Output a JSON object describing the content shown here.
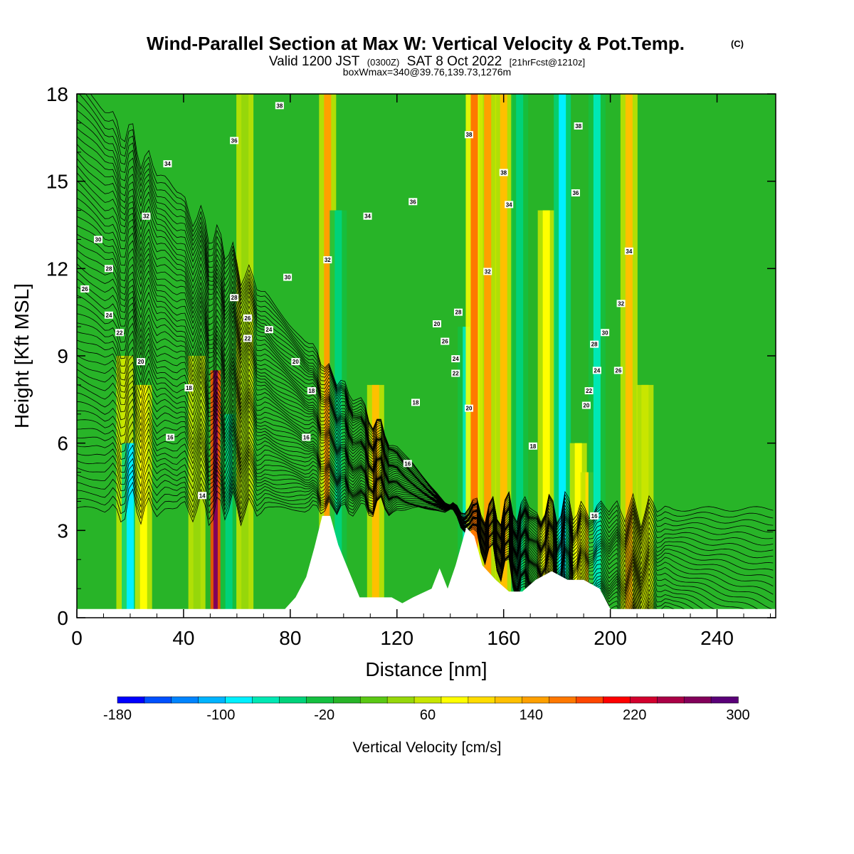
{
  "title": {
    "main": "Wind-Parallel Section at Max W: Vertical Velocity & Pot.Temp.",
    "copyright": "(C)",
    "valid_a": "Valid 1200 JST",
    "valid_b": "(0300Z)",
    "valid_c": "SAT 8 Oct 2022",
    "valid_d": "[21hrFcst@1210z]",
    "line3": "boxWmax=340@39.76,139.73,1276m"
  },
  "colors": {
    "terrain": "#ffffff",
    "contour": "#000000",
    "colormap": [
      "#0000ff",
      "#0050ff",
      "#0084ff",
      "#00b4ff",
      "#00f0ff",
      "#00e8b4",
      "#00d27a",
      "#14c040",
      "#28b428",
      "#5ac814",
      "#96d70a",
      "#c8e600",
      "#ffff00",
      "#ffdc00",
      "#ffc000",
      "#ffa000",
      "#ff7800",
      "#ff4600",
      "#ff0000",
      "#d2002d",
      "#aa0046",
      "#82005a",
      "#5a0078"
    ]
  },
  "chart_data": {
    "type": "heatmap",
    "xlabel": "Distance [nm]",
    "ylabel": "Height [Kft MSL]",
    "xlim": [
      0,
      262
    ],
    "ylim": [
      0,
      18
    ],
    "xticks": [
      0,
      40,
      80,
      120,
      160,
      200,
      240
    ],
    "yticks": [
      0,
      3,
      6,
      9,
      12,
      15,
      18
    ],
    "colorbar": {
      "label": "Vertical Velocity [cm/s]",
      "min": -180,
      "max": 300,
      "step": 20,
      "tick_labels": [
        -180,
        -100,
        -20,
        60,
        140,
        220,
        300
      ]
    },
    "background_w": -20,
    "updraft_bands": [
      {
        "x": 18,
        "w": 40,
        "top": 9
      },
      {
        "x": 20,
        "w": -100,
        "top": 6
      },
      {
        "x": 25,
        "w": 60,
        "top": 8
      },
      {
        "x": 45,
        "w": 30,
        "top": 9
      },
      {
        "x": 52,
        "w": 240,
        "top": 8.5
      },
      {
        "x": 57,
        "w": -60,
        "top": 7
      },
      {
        "x": 63,
        "w": 20,
        "top": 18
      },
      {
        "x": 94,
        "w": 120,
        "top": 18
      },
      {
        "x": 98,
        "w": -60,
        "top": 14
      },
      {
        "x": 112,
        "w": 100,
        "top": 8
      },
      {
        "x": 146,
        "w": -80,
        "top": 10
      },
      {
        "x": 149,
        "w": 140,
        "top": 18
      },
      {
        "x": 154,
        "w": 120,
        "top": 18
      },
      {
        "x": 160,
        "w": 100,
        "top": 18
      },
      {
        "x": 166,
        "w": -60,
        "top": 18
      },
      {
        "x": 176,
        "w": 60,
        "top": 14
      },
      {
        "x": 182,
        "w": -100,
        "top": 18
      },
      {
        "x": 188,
        "w": 60,
        "top": 6
      },
      {
        "x": 192,
        "w": 80,
        "top": 5
      },
      {
        "x": 195,
        "w": -80,
        "top": 18
      },
      {
        "x": 207,
        "w": 100,
        "top": 18
      },
      {
        "x": 213,
        "w": 40,
        "top": 8
      }
    ],
    "terrain": [
      [
        0,
        0.3
      ],
      [
        78,
        0.3
      ],
      [
        82,
        0.7
      ],
      [
        86,
        1.4
      ],
      [
        89,
        2.4
      ],
      [
        92,
        3.5
      ],
      [
        95,
        3.5
      ],
      [
        98,
        2.5
      ],
      [
        102,
        1.6
      ],
      [
        106,
        0.7
      ],
      [
        118,
        0.7
      ],
      [
        122,
        0.5
      ],
      [
        126,
        0.7
      ],
      [
        133,
        1.0
      ],
      [
        136,
        1.7
      ],
      [
        139,
        1.0
      ],
      [
        142,
        1.8
      ],
      [
        146,
        3.1
      ],
      [
        149,
        2.8
      ],
      [
        152,
        1.8
      ],
      [
        157,
        1.3
      ],
      [
        162,
        0.9
      ],
      [
        167,
        0.9
      ],
      [
        172,
        1.3
      ],
      [
        178,
        1.6
      ],
      [
        184,
        1.3
      ],
      [
        190,
        1.3
      ],
      [
        196,
        1.0
      ],
      [
        200,
        0.3
      ],
      [
        262,
        0.3
      ]
    ],
    "theta_levels": [
      14,
      16,
      18,
      20,
      22,
      24,
      26,
      28,
      30,
      32,
      34,
      36,
      38
    ],
    "contour_labels": [
      {
        "text": "38",
        "x": 76,
        "y": 17.6
      },
      {
        "text": "36",
        "x": 59,
        "y": 16.4
      },
      {
        "text": "34",
        "x": 34,
        "y": 15.6
      },
      {
        "text": "32",
        "x": 26,
        "y": 13.8
      },
      {
        "text": "30",
        "x": 8,
        "y": 13.0
      },
      {
        "text": "28",
        "x": 12,
        "y": 12.0
      },
      {
        "text": "26",
        "x": 3,
        "y": 11.3
      },
      {
        "text": "24",
        "x": 12,
        "y": 10.4
      },
      {
        "text": "22",
        "x": 16,
        "y": 9.8
      },
      {
        "text": "20",
        "x": 24,
        "y": 8.8
      },
      {
        "text": "18",
        "x": 42,
        "y": 7.9
      },
      {
        "text": "16",
        "x": 35,
        "y": 6.2
      },
      {
        "text": "14",
        "x": 47,
        "y": 4.2
      },
      {
        "text": "28",
        "x": 59,
        "y": 11.0
      },
      {
        "text": "26",
        "x": 64,
        "y": 10.3
      },
      {
        "text": "24",
        "x": 72,
        "y": 9.9
      },
      {
        "text": "22",
        "x": 64,
        "y": 9.6
      },
      {
        "text": "30",
        "x": 79,
        "y": 11.7
      },
      {
        "text": "20",
        "x": 82,
        "y": 8.8
      },
      {
        "text": "18",
        "x": 88,
        "y": 7.8
      },
      {
        "text": "16",
        "x": 86,
        "y": 6.2
      },
      {
        "text": "32",
        "x": 94,
        "y": 12.3
      },
      {
        "text": "34",
        "x": 109,
        "y": 13.8
      },
      {
        "text": "36",
        "x": 126,
        "y": 14.3
      },
      {
        "text": "16",
        "x": 124,
        "y": 5.3
      },
      {
        "text": "18",
        "x": 127,
        "y": 7.4
      },
      {
        "text": "20",
        "x": 135,
        "y": 10.1
      },
      {
        "text": "28",
        "x": 143,
        "y": 10.5
      },
      {
        "text": "26",
        "x": 138,
        "y": 9.5
      },
      {
        "text": "24",
        "x": 142,
        "y": 8.9
      },
      {
        "text": "22",
        "x": 142,
        "y": 8.4
      },
      {
        "text": "20",
        "x": 147,
        "y": 7.2
      },
      {
        "text": "38",
        "x": 147,
        "y": 16.6
      },
      {
        "text": "38",
        "x": 160,
        "y": 15.3
      },
      {
        "text": "34",
        "x": 162,
        "y": 14.2
      },
      {
        "text": "32",
        "x": 154,
        "y": 11.9
      },
      {
        "text": "18",
        "x": 171,
        "y": 5.9
      },
      {
        "text": "38",
        "x": 188,
        "y": 16.9
      },
      {
        "text": "36",
        "x": 187,
        "y": 14.6
      },
      {
        "text": "34",
        "x": 207,
        "y": 12.6
      },
      {
        "text": "32",
        "x": 204,
        "y": 10.8
      },
      {
        "text": "30",
        "x": 198,
        "y": 9.8
      },
      {
        "text": "28",
        "x": 194,
        "y": 9.4
      },
      {
        "text": "24",
        "x": 195,
        "y": 8.5
      },
      {
        "text": "22",
        "x": 192,
        "y": 7.8
      },
      {
        "text": "20",
        "x": 191,
        "y": 7.3
      },
      {
        "text": "26",
        "x": 203,
        "y": 8.5
      },
      {
        "text": "16",
        "x": 194,
        "y": 3.5
      }
    ]
  }
}
